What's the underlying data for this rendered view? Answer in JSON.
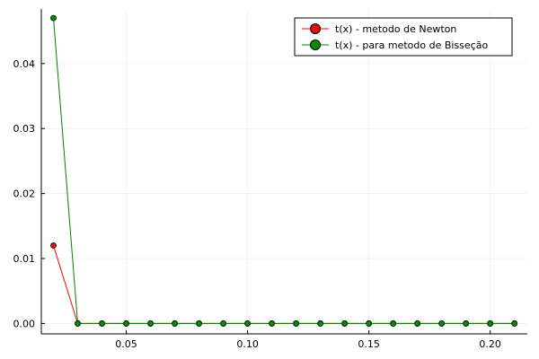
{
  "chart_data": {
    "type": "line",
    "title": "",
    "xlabel": "",
    "ylabel": "",
    "xlim": [
      0.015,
      0.2153
    ],
    "ylim": [
      -0.0016,
      0.0484
    ],
    "x_ticks": [
      0.05,
      0.1,
      0.15,
      0.2
    ],
    "x_tick_labels": [
      "0.05",
      "0.10",
      "0.15",
      "0.20"
    ],
    "y_ticks": [
      0.0,
      0.01,
      0.02,
      0.03,
      0.04
    ],
    "y_tick_labels": [
      "0.00",
      "0.01",
      "0.02",
      "0.03",
      "0.04"
    ],
    "grid": true,
    "legend_position": "top-right",
    "x": [
      0.02,
      0.03,
      0.04,
      0.05,
      0.06,
      0.07,
      0.08,
      0.09,
      0.1,
      0.11,
      0.12,
      0.13,
      0.14,
      0.15,
      0.16,
      0.17,
      0.18,
      0.19,
      0.2,
      0.21
    ],
    "series": [
      {
        "name": "t(x) - metodo de Newton",
        "color": "#ff0000",
        "marker_color": "#e01010",
        "values": [
          0.012,
          0,
          0,
          0,
          0,
          0,
          0,
          0,
          0,
          0,
          0,
          0,
          0,
          0,
          0,
          0,
          0,
          0,
          0,
          0
        ]
      },
      {
        "name": "t(x) - para metodo de Bisseção",
        "color": "#008000",
        "marker_color": "#009000",
        "values": [
          0.047,
          0,
          0,
          0,
          0,
          0,
          0,
          0,
          0,
          0,
          0,
          0,
          0,
          0,
          0,
          0,
          0,
          0,
          0,
          0
        ]
      }
    ]
  }
}
